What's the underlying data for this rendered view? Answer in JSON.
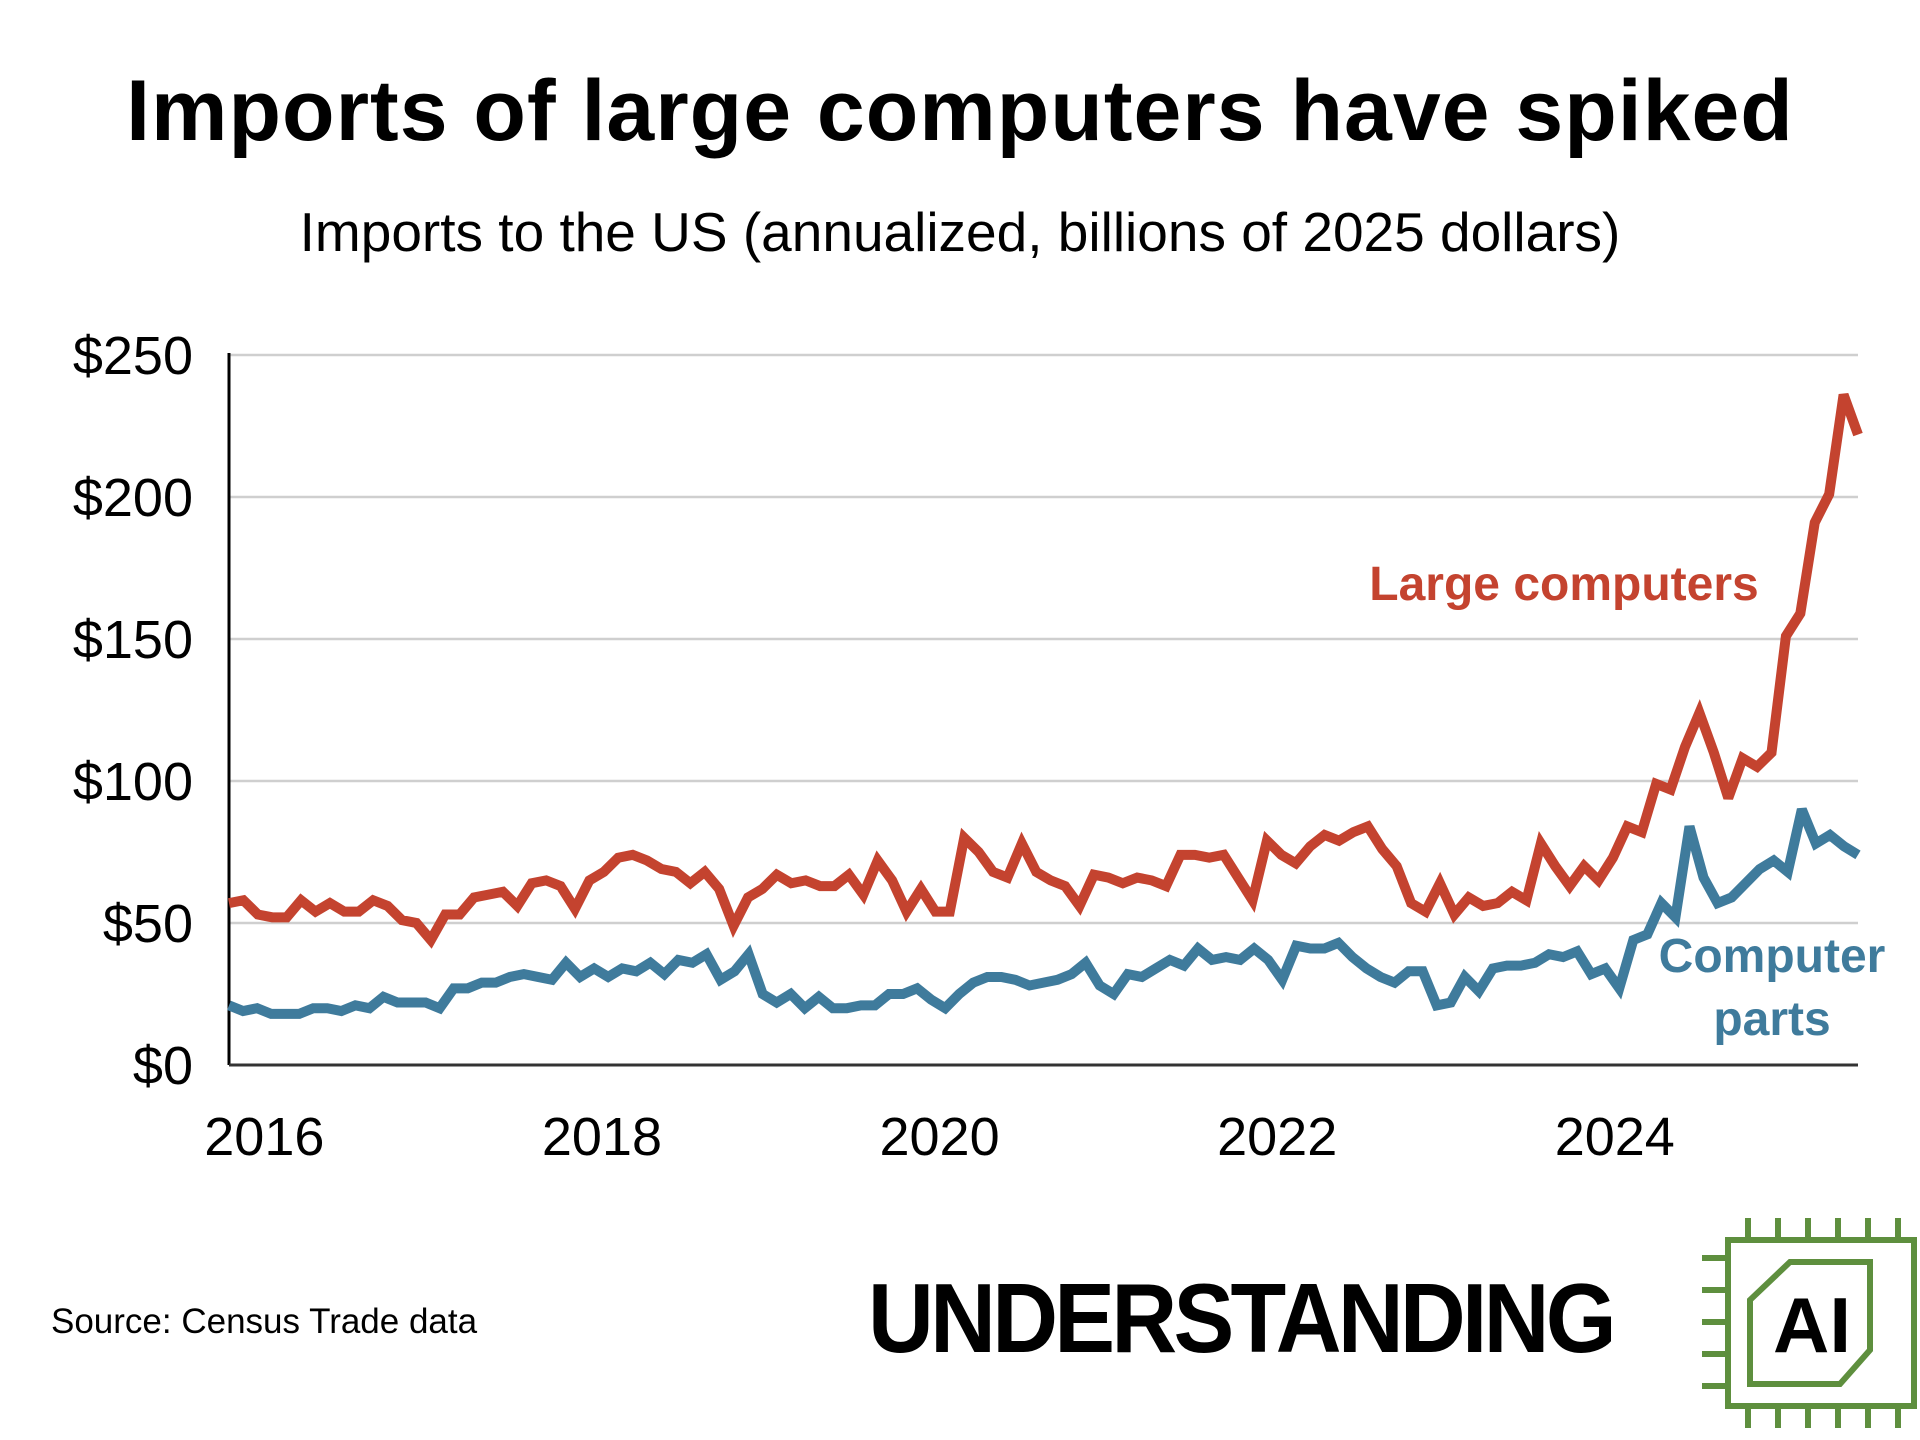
{
  "chart_data": {
    "type": "line",
    "title": "Imports of large computers have spiked",
    "subtitle": "Imports to the US (annualized, billions of 2025 dollars)",
    "xlabel": "",
    "ylabel": "",
    "x_range": [
      2015.85,
      2025.5
    ],
    "ylim": [
      0,
      250
    ],
    "y_ticks": [
      0,
      50,
      100,
      150,
      200,
      250
    ],
    "y_tick_labels": [
      "$0",
      "$50",
      "$100",
      "$150",
      "$200",
      "$250"
    ],
    "x_ticks": [
      2016,
      2018,
      2020,
      2022,
      2024
    ],
    "x_tick_labels": [
      "2016",
      "2018",
      "2020",
      "2022",
      "2024"
    ],
    "grid": true,
    "legend": "inline labels at right",
    "series": [
      {
        "name": "Large computers",
        "label_lines": [
          "Large computers"
        ],
        "color": "#c4432f",
        "values": [
          57,
          58,
          53,
          52,
          52,
          58,
          54,
          57,
          54,
          54,
          58,
          56,
          51,
          50,
          44,
          53,
          53,
          59,
          60,
          61,
          56,
          64,
          65,
          63,
          55,
          65,
          68,
          73,
          74,
          72,
          69,
          68,
          64,
          68,
          62,
          49,
          59,
          62,
          67,
          64,
          65,
          63,
          63,
          67,
          60,
          72,
          65,
          54,
          62,
          54,
          54,
          80,
          75,
          68,
          66,
          78,
          68,
          65,
          63,
          56,
          67,
          66,
          64,
          66,
          65,
          63,
          74,
          74,
          73,
          74,
          66,
          58,
          79,
          74,
          71,
          77,
          81,
          79,
          82,
          84,
          76,
          70,
          57,
          54,
          64,
          53,
          59,
          56,
          57,
          61,
          58,
          78,
          70,
          63,
          70,
          65,
          73,
          84,
          82,
          99,
          97,
          112,
          124,
          110,
          94,
          108,
          105,
          110,
          151,
          159,
          191,
          201,
          236,
          222
        ]
      },
      {
        "name": "Computer parts",
        "label_lines": [
          "Computer",
          "parts"
        ],
        "color": "#3f7b9c",
        "values": [
          21,
          19,
          20,
          18,
          18,
          18,
          20,
          20,
          19,
          21,
          20,
          24,
          22,
          22,
          22,
          20,
          27,
          27,
          29,
          29,
          31,
          32,
          31,
          30,
          36,
          31,
          34,
          31,
          34,
          33,
          36,
          32,
          37,
          36,
          39,
          30,
          33,
          39,
          25,
          22,
          25,
          20,
          24,
          20,
          20,
          21,
          21,
          25,
          25,
          27,
          23,
          20,
          25,
          29,
          31,
          31,
          30,
          28,
          29,
          30,
          32,
          36,
          28,
          25,
          32,
          31,
          34,
          37,
          35,
          41,
          37,
          38,
          37,
          41,
          37,
          30,
          42,
          41,
          41,
          43,
          38,
          34,
          31,
          29,
          33,
          33,
          21,
          22,
          31,
          26,
          34,
          35,
          35,
          36,
          39,
          38,
          40,
          32,
          34,
          27,
          44,
          46,
          57,
          52,
          84,
          66,
          57,
          59,
          64,
          69,
          72,
          68,
          90,
          78,
          81,
          77,
          74
        ]
      }
    ]
  },
  "source": "Source: Census Trade data",
  "logo": {
    "text": "UNDERSTANDING",
    "chip_text": "AI",
    "color": "#5e8f3e"
  }
}
